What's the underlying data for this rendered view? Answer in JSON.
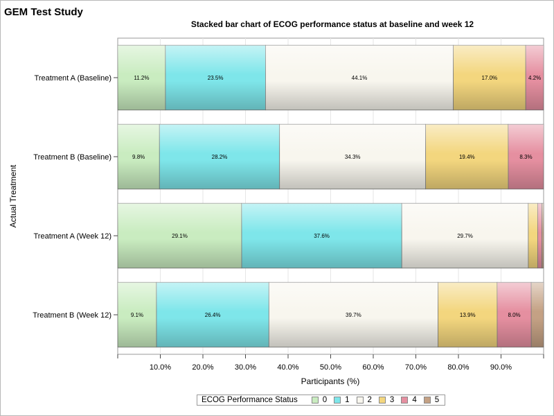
{
  "page": {
    "title": "GEM Test Study"
  },
  "chart_data": {
    "type": "bar",
    "orientation": "horizontal",
    "stacked": true,
    "title": "Stacked bar chart of ECOG performance status at baseline and week 12",
    "xlabel": "Participants (%)",
    "ylabel": "Actual Treatment",
    "xlim": [
      0,
      100
    ],
    "xticks": [
      10,
      20,
      30,
      40,
      50,
      60,
      70,
      80,
      90
    ],
    "xtick_labels": [
      "10.0%",
      "20.0%",
      "30.0%",
      "40.0%",
      "50.0%",
      "60.0%",
      "70.0%",
      "80.0%",
      "90.0%"
    ],
    "grid": true,
    "categories": [
      "Treatment A (Baseline)",
      "Treatment B (Baseline)",
      "Treatment A (Week 12)",
      "Treatment B (Week 12)"
    ],
    "series": [
      {
        "name": "0",
        "color": "#c9ecc0",
        "values": [
          11.2,
          9.8,
          29.1,
          9.1
        ],
        "labels": [
          "11.2%",
          "9.8%",
          "29.1%",
          "9.1%"
        ]
      },
      {
        "name": "1",
        "color": "#7ee6ea",
        "values": [
          23.5,
          28.2,
          37.6,
          26.4
        ],
        "labels": [
          "23.5%",
          "28.2%",
          "37.6%",
          "26.4%"
        ]
      },
      {
        "name": "2",
        "color": "#f8f6ee",
        "values": [
          44.1,
          34.3,
          29.7,
          39.7
        ],
        "labels": [
          "44.1%",
          "34.3%",
          "29.7%",
          "39.7%"
        ]
      },
      {
        "name": "3",
        "color": "#f3d67e",
        "values": [
          17.0,
          19.4,
          2.2,
          13.9
        ],
        "labels": [
          "17.0%",
          "19.4%",
          "",
          "13.9%"
        ]
      },
      {
        "name": "4",
        "color": "#e58fa0",
        "values": [
          4.2,
          8.3,
          1.0,
          8.0
        ],
        "labels": [
          "4.2%",
          "8.3%",
          "",
          "8.0%"
        ]
      },
      {
        "name": "5",
        "color": "#c4a184",
        "values": [
          0,
          0,
          0.4,
          2.9
        ],
        "labels": [
          "",
          "",
          "",
          ""
        ]
      }
    ],
    "legend": {
      "title": "ECOG Performance Status",
      "position": "bottom"
    }
  }
}
